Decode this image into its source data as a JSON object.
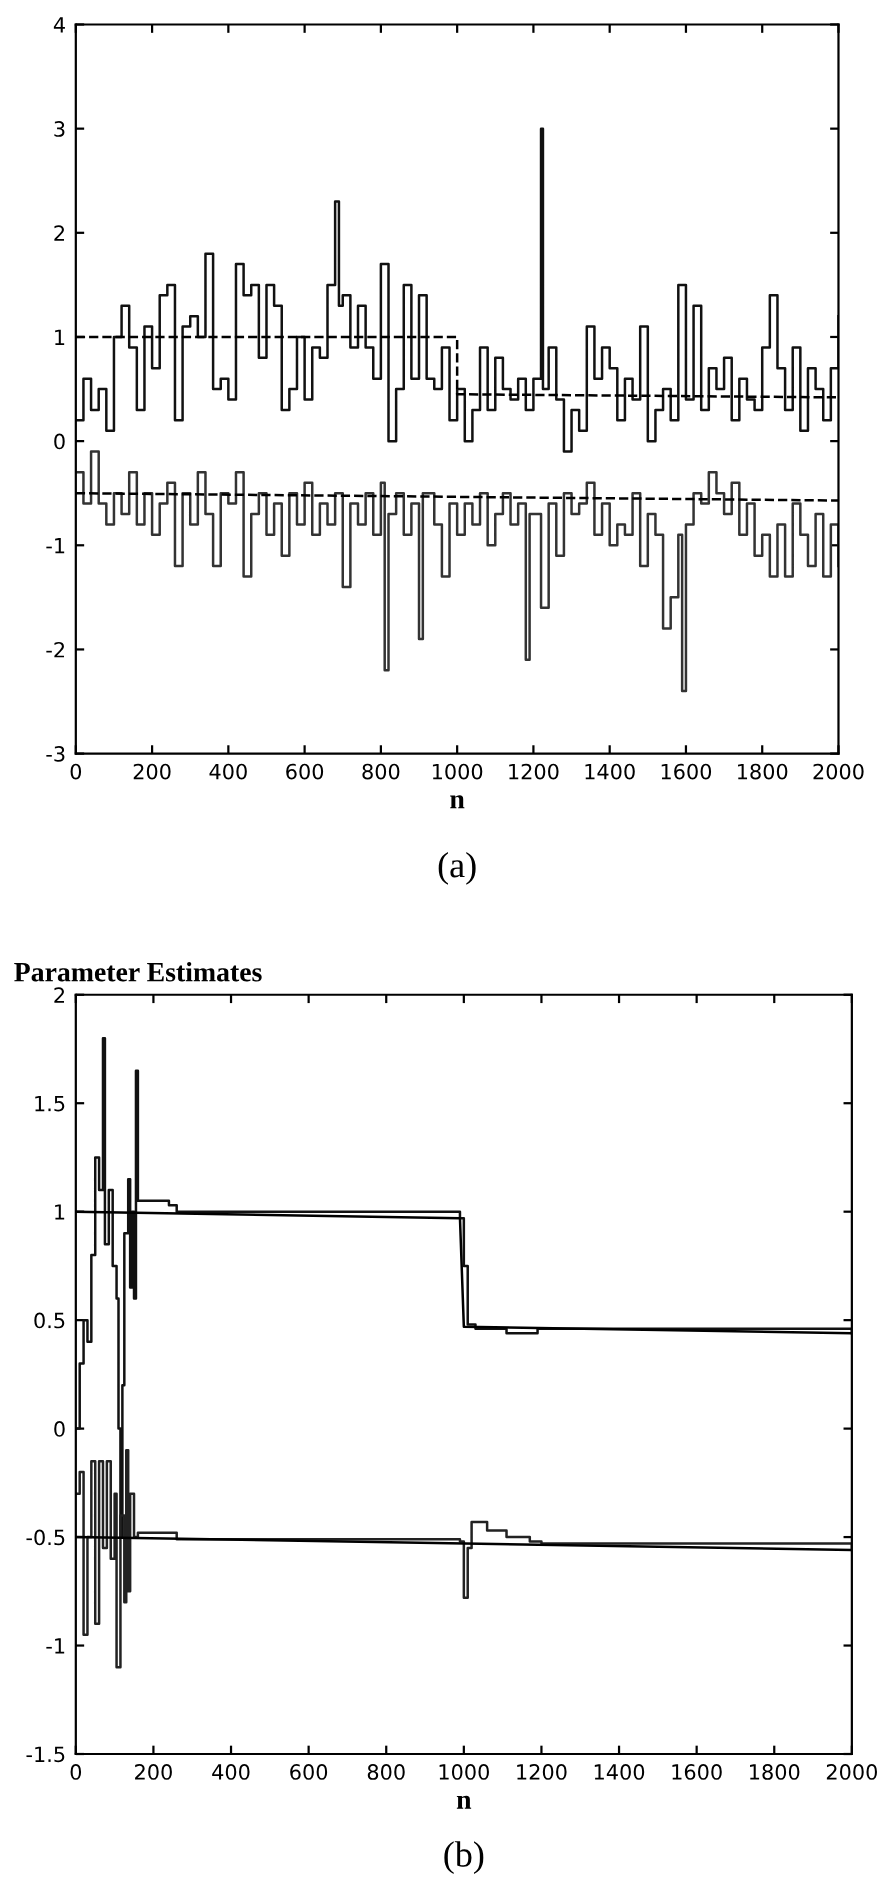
{
  "chart_data": [
    {
      "type": "step",
      "xlabel": "n",
      "annotations": [
        "(a)"
      ],
      "xlim": [
        0,
        2000
      ],
      "xticks": [
        0,
        200,
        400,
        600,
        800,
        1000,
        1200,
        1400,
        1600,
        1800,
        2000
      ],
      "ylim": [
        -3,
        4
      ],
      "yticks": [
        -3,
        -2,
        -1,
        0,
        1,
        2,
        3,
        4
      ],
      "grid": false,
      "legend": false,
      "series": [
        {
          "color": "#111111",
          "x": [
            0,
            20,
            40,
            60,
            80,
            100,
            120,
            140,
            160,
            180,
            200,
            220,
            240,
            260,
            280,
            300,
            320,
            340,
            360,
            380,
            400,
            420,
            440,
            460,
            480,
            500,
            520,
            540,
            560,
            580,
            600,
            620,
            640,
            660,
            680,
            690,
            700,
            720,
            740,
            760,
            780,
            800,
            820,
            840,
            860,
            880,
            900,
            920,
            940,
            960,
            980,
            1000,
            1020,
            1040,
            1060,
            1080,
            1100,
            1120,
            1140,
            1160,
            1180,
            1200,
            1220,
            1225,
            1240,
            1260,
            1280,
            1300,
            1320,
            1340,
            1360,
            1380,
            1400,
            1420,
            1440,
            1460,
            1480,
            1500,
            1520,
            1540,
            1560,
            1580,
            1600,
            1620,
            1640,
            1660,
            1680,
            1700,
            1720,
            1740,
            1760,
            1780,
            1800,
            1820,
            1840,
            1860,
            1880,
            1900,
            1920,
            1940,
            1960,
            1980,
            2000
          ],
          "values": [
            0.2,
            0.6,
            0.3,
            0.5,
            0.1,
            1.0,
            1.3,
            0.9,
            0.3,
            1.1,
            0.7,
            1.4,
            1.5,
            0.2,
            1.1,
            1.2,
            1.0,
            1.8,
            0.5,
            0.6,
            0.4,
            1.7,
            1.4,
            1.5,
            0.8,
            1.5,
            1.3,
            0.3,
            0.5,
            1.0,
            0.4,
            0.9,
            0.8,
            1.5,
            2.3,
            1.3,
            1.4,
            0.9,
            1.3,
            0.9,
            0.6,
            1.7,
            0.0,
            0.5,
            1.5,
            0.6,
            1.4,
            0.6,
            0.5,
            0.9,
            0.2,
            0.5,
            0.0,
            0.3,
            0.9,
            0.3,
            0.8,
            0.5,
            0.4,
            0.6,
            0.3,
            0.6,
            3.0,
            0.5,
            0.9,
            0.4,
            -0.1,
            0.3,
            0.1,
            1.1,
            0.6,
            0.9,
            0.7,
            0.2,
            0.6,
            0.4,
            1.1,
            0.0,
            0.3,
            0.5,
            0.2,
            1.5,
            0.4,
            1.3,
            0.3,
            0.7,
            0.5,
            0.8,
            0.2,
            0.6,
            0.4,
            0.3,
            0.9,
            1.4,
            0.7,
            0.3,
            0.9,
            0.1,
            0.7,
            0.5,
            0.2,
            0.7,
            1.2
          ]
        },
        {
          "color": "#333333",
          "x": [
            0,
            20,
            40,
            60,
            80,
            100,
            120,
            140,
            160,
            180,
            200,
            220,
            240,
            260,
            280,
            300,
            320,
            340,
            360,
            380,
            400,
            420,
            440,
            460,
            480,
            500,
            520,
            540,
            560,
            580,
            600,
            620,
            640,
            660,
            680,
            700,
            720,
            740,
            760,
            780,
            800,
            810,
            820,
            840,
            860,
            880,
            900,
            910,
            940,
            960,
            980,
            1000,
            1020,
            1040,
            1060,
            1080,
            1100,
            1120,
            1140,
            1160,
            1180,
            1190,
            1220,
            1240,
            1260,
            1280,
            1300,
            1320,
            1340,
            1360,
            1380,
            1400,
            1420,
            1440,
            1460,
            1480,
            1500,
            1520,
            1540,
            1560,
            1580,
            1590,
            1600,
            1620,
            1640,
            1660,
            1680,
            1700,
            1720,
            1740,
            1760,
            1780,
            1800,
            1820,
            1840,
            1860,
            1880,
            1900,
            1920,
            1940,
            1960,
            1980,
            2000
          ],
          "values": [
            -0.3,
            -0.6,
            -0.1,
            -0.6,
            -0.8,
            -0.5,
            -0.7,
            -0.3,
            -0.8,
            -0.5,
            -0.9,
            -0.6,
            -0.4,
            -1.2,
            -0.5,
            -0.8,
            -0.3,
            -0.7,
            -1.2,
            -0.5,
            -0.6,
            -0.3,
            -1.3,
            -0.7,
            -0.5,
            -0.9,
            -0.6,
            -1.1,
            -0.5,
            -0.8,
            -0.4,
            -0.9,
            -0.6,
            -0.8,
            -0.5,
            -1.4,
            -0.6,
            -0.8,
            -0.5,
            -0.9,
            -0.4,
            -2.2,
            -0.7,
            -0.5,
            -0.9,
            -0.6,
            -1.9,
            -0.5,
            -0.8,
            -1.3,
            -0.6,
            -0.9,
            -0.6,
            -0.8,
            -0.5,
            -1.0,
            -0.7,
            -0.5,
            -0.8,
            -0.6,
            -2.1,
            -0.7,
            -1.6,
            -0.6,
            -1.1,
            -0.5,
            -0.7,
            -0.6,
            -0.4,
            -0.9,
            -0.6,
            -1.0,
            -0.8,
            -0.9,
            -0.5,
            -1.2,
            -0.7,
            -0.9,
            -1.8,
            -1.5,
            -0.9,
            -2.4,
            -0.8,
            -0.5,
            -0.6,
            -0.3,
            -0.5,
            -0.7,
            -0.4,
            -0.9,
            -0.6,
            -1.1,
            -0.9,
            -1.3,
            -0.8,
            -1.3,
            -0.6,
            -0.9,
            -1.2,
            -0.7,
            -1.3,
            -0.8,
            -1.2
          ]
        },
        {
          "type": "line",
          "line_style": "dashed",
          "color": "#000000",
          "x": [
            0,
            1000,
            1000,
            2000
          ],
          "values": [
            1,
            1,
            0.45,
            0.42
          ]
        },
        {
          "type": "line",
          "line_style": "dashed",
          "color": "#000000",
          "x": [
            0,
            2000
          ],
          "values": [
            -0.5,
            -0.57
          ]
        }
      ]
    },
    {
      "type": "step",
      "title": "Parameter Estimates",
      "xlabel": "n",
      "annotations": [
        "(b)"
      ],
      "xlim": [
        0,
        2000
      ],
      "xticks": [
        0,
        200,
        400,
        600,
        800,
        1000,
        1200,
        1400,
        1600,
        1800,
        2000
      ],
      "ylim": [
        -1.5,
        2
      ],
      "yticks": [
        -1.5,
        -1,
        -0.5,
        0,
        0.5,
        1,
        1.5,
        2
      ],
      "grid": false,
      "legend": false,
      "series": [
        {
          "color": "#111111",
          "x": [
            0,
            10,
            20,
            30,
            40,
            50,
            60,
            70,
            75,
            85,
            95,
            105,
            110,
            115,
            120,
            125,
            135,
            140,
            145,
            150,
            155,
            160,
            170,
            240,
            260,
            990,
            1000,
            1010,
            1030,
            1100,
            1110,
            1180,
            1190,
            2000
          ],
          "values": [
            0.0,
            0.3,
            0.5,
            0.4,
            0.8,
            1.25,
            1.1,
            1.8,
            0.85,
            1.1,
            0.75,
            0.6,
            0.0,
            -0.5,
            0.2,
            0.9,
            1.15,
            0.65,
            1.0,
            0.6,
            1.65,
            1.05,
            1.05,
            1.03,
            1.0,
            0.97,
            0.75,
            0.48,
            0.46,
            0.46,
            0.44,
            0.44,
            0.46,
            0.44
          ]
        },
        {
          "color": "#222222",
          "x": [
            0,
            10,
            20,
            30,
            40,
            50,
            60,
            70,
            80,
            90,
            100,
            105,
            115,
            125,
            130,
            135,
            140,
            150,
            160,
            240,
            260,
            990,
            1000,
            1010,
            1020,
            1060,
            1110,
            1170,
            1200,
            2000
          ],
          "values": [
            -0.3,
            -0.2,
            -0.95,
            -0.5,
            -0.15,
            -0.9,
            -0.15,
            -0.55,
            -0.15,
            -0.6,
            -0.3,
            -1.1,
            -0.4,
            -0.8,
            -0.1,
            -0.75,
            -0.3,
            -0.5,
            -0.48,
            -0.48,
            -0.51,
            -0.52,
            -0.78,
            -0.55,
            -0.43,
            -0.47,
            -0.5,
            -0.52,
            -0.53,
            -0.56
          ]
        },
        {
          "type": "line",
          "line_style": "solid",
          "color": "#000000",
          "x": [
            0,
            990,
            1000,
            2000
          ],
          "values": [
            1,
            0.97,
            0.47,
            0.44
          ]
        },
        {
          "type": "line",
          "line_style": "solid",
          "color": "#000000",
          "x": [
            0,
            2000
          ],
          "values": [
            -0.5,
            -0.56
          ]
        }
      ]
    }
  ]
}
